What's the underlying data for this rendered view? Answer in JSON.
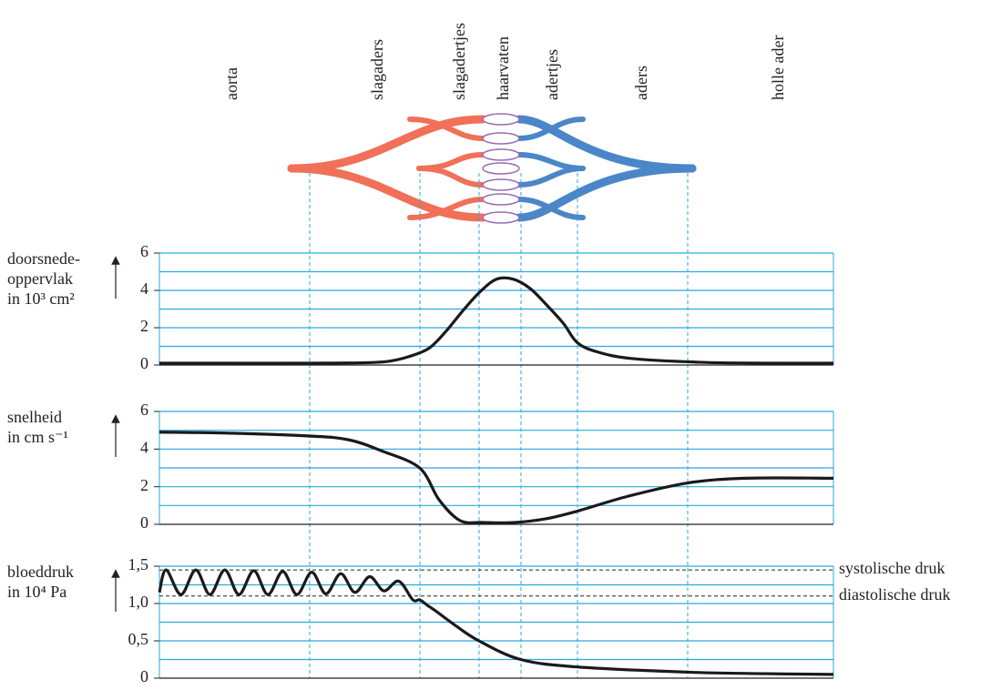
{
  "vessel_labels": [
    "aorta",
    "slagaders",
    "slagadertjes",
    "haarvaten",
    "adertjes",
    "aders",
    "holle ader"
  ],
  "chart_data": [
    {
      "type": "line",
      "y_label": [
        "doorsnede-",
        "oppervlak",
        "in 10³ cm²"
      ],
      "color": "#1a1a1a",
      "x": [
        0,
        10,
        20,
        30,
        34,
        37,
        40,
        42.5,
        45,
        47.5,
        50,
        52.5,
        55,
        57.5,
        60,
        62,
        65,
        70,
        80,
        90,
        100
      ],
      "values": [
        0.1,
        0.1,
        0.1,
        0.12,
        0.2,
        0.45,
        0.9,
        1.8,
        2.9,
        3.9,
        4.6,
        4.6,
        4.1,
        3.2,
        2.2,
        1.2,
        0.7,
        0.35,
        0.15,
        0.1,
        0.1
      ],
      "xlim": [
        0,
        100
      ],
      "ylim": [
        0,
        6
      ],
      "yticks": [
        0,
        2,
        4,
        6
      ],
      "minor_yticks": [
        1,
        3,
        5
      ],
      "grid": true
    },
    {
      "type": "line",
      "y_label": [
        "snelheid",
        "in cm s⁻¹"
      ],
      "color": "#1a1a1a",
      "x": [
        0,
        10,
        22,
        28,
        33,
        38.6,
        41.5,
        44.6,
        48,
        52.7,
        57.4,
        62,
        69.6,
        78.4,
        87,
        100
      ],
      "values": [
        4.9,
        4.85,
        4.7,
        4.5,
        3.9,
        3.0,
        1.3,
        0.2,
        0.1,
        0.1,
        0.3,
        0.7,
        1.5,
        2.2,
        2.45,
        2.45
      ],
      "xlim": [
        0,
        100
      ],
      "ylim": [
        0,
        6
      ],
      "yticks": [
        0,
        2,
        4,
        6
      ],
      "minor_yticks": [
        1,
        3,
        5
      ],
      "grid": true
    },
    {
      "type": "line",
      "y_label": [
        "bloeddruk",
        "in 10⁴ Pa"
      ],
      "color": "#1a1a1a",
      "x": [
        0,
        1,
        3.2,
        5.4,
        7.5,
        9.7,
        11.8,
        14,
        16.1,
        18.3,
        20.4,
        22.6,
        24.7,
        26.9,
        29,
        31.2,
        33.3,
        35.5,
        37.6,
        38.6,
        39.7,
        41,
        44,
        47.4,
        53.6,
        62,
        78.4,
        90,
        100
      ],
      "values": [
        1.15,
        1.45,
        1.12,
        1.45,
        1.12,
        1.45,
        1.12,
        1.44,
        1.12,
        1.43,
        1.12,
        1.42,
        1.13,
        1.4,
        1.15,
        1.36,
        1.17,
        1.3,
        1.05,
        1.05,
        0.98,
        0.9,
        0.7,
        0.5,
        0.25,
        0.15,
        0.08,
        0.06,
        0.05
      ],
      "xlim": [
        0,
        100
      ],
      "ylim": [
        0,
        1.5
      ],
      "yticks": [
        0,
        {
          "value": 0.5,
          "label": "0,5"
        },
        {
          "value": 1.0,
          "label": "1,0"
        },
        {
          "value": 1.5,
          "label": "1,5"
        }
      ],
      "minor_yticks": [
        0.25,
        0.75,
        1.25
      ],
      "grid": true,
      "reference_lines": [
        {
          "value": 1.45,
          "label": "systolische druk"
        },
        {
          "value": 1.1,
          "label": "diastolische druk"
        }
      ]
    }
  ]
}
